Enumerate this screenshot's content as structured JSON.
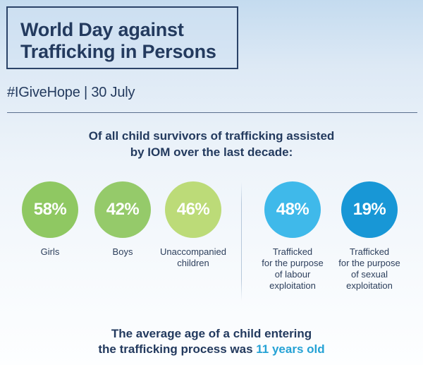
{
  "header": {
    "title_line1": "World Day against",
    "title_line2": "Trafficking in Persons",
    "subtitle": "#IGiveHope | 30 July"
  },
  "intro": {
    "line1": "Of all child survivors of trafficking assisted",
    "line2": "by IOM over the last decade:"
  },
  "stats": [
    {
      "value": "58%",
      "label": "Girls",
      "color": "#8fc862"
    },
    {
      "value": "42%",
      "label": "Boys",
      "color": "#95ca6a"
    },
    {
      "value": "46%",
      "label_line1": "Unaccompanied",
      "label_line2": "children",
      "color": "#bcdb78"
    },
    {
      "value": "48%",
      "label_line1": "Trafficked",
      "label_line2": "for the purpose",
      "label_line3": "of labour",
      "label_line4": "exploitation",
      "color": "#3fb9ea"
    },
    {
      "value": "19%",
      "label_line1": "Trafficked",
      "label_line2": "for the purpose",
      "label_line3": "of sexual",
      "label_line4": "exploitation",
      "color": "#1897d6"
    }
  ],
  "summary": {
    "line1": "The average age of a child entering",
    "line2_prefix": "the trafficking process was",
    "line2_highlight": "11 years old"
  },
  "colors": {
    "text_dark": "#233a5e",
    "highlight": "#25a2d5"
  }
}
